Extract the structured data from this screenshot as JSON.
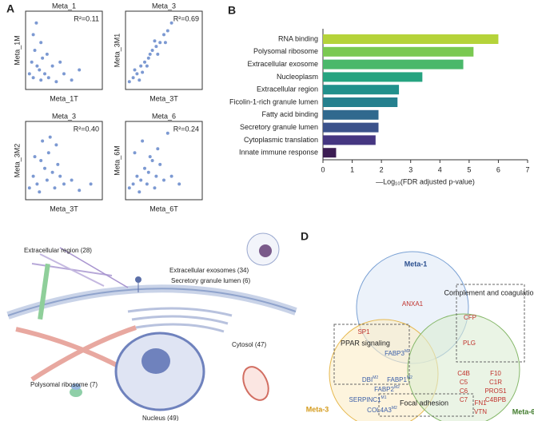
{
  "chart_data": [
    {
      "type": "scatter",
      "panel": "A",
      "title": "Meta_1",
      "x_label": "Meta_1T",
      "y_label": "Meta_1M",
      "annotation": "R²=0.11",
      "color": "#5b7fc7",
      "xlim": [
        0,
        1
      ],
      "ylim": [
        0,
        1
      ],
      "x": [
        0.05,
        0.08,
        0.1,
        0.12,
        0.15,
        0.18,
        0.2,
        0.22,
        0.25,
        0.3,
        0.35,
        0.4,
        0.5,
        0.6,
        0.1,
        0.14,
        0.2,
        0.28,
        0.45,
        0.7
      ],
      "y": [
        0.2,
        0.35,
        0.15,
        0.5,
        0.3,
        0.25,
        0.12,
        0.4,
        0.2,
        0.15,
        0.3,
        0.1,
        0.2,
        0.12,
        0.7,
        0.85,
        0.6,
        0.45,
        0.35,
        0.25
      ]
    },
    {
      "type": "scatter",
      "panel": "A",
      "title": "Meta_3",
      "x_label": "Meta_3T",
      "y_label": "Meta_3M1",
      "annotation": "R²=0.69",
      "color": "#5b7fc7",
      "xlim": [
        0,
        1
      ],
      "ylim": [
        0,
        1
      ],
      "x": [
        0.05,
        0.1,
        0.15,
        0.2,
        0.25,
        0.3,
        0.35,
        0.4,
        0.45,
        0.5,
        0.55,
        0.6,
        0.12,
        0.22,
        0.32,
        0.42,
        0.52,
        0.18,
        0.28,
        0.38
      ],
      "y": [
        0.1,
        0.15,
        0.2,
        0.3,
        0.35,
        0.4,
        0.5,
        0.55,
        0.6,
        0.7,
        0.75,
        0.85,
        0.25,
        0.22,
        0.45,
        0.45,
        0.6,
        0.12,
        0.3,
        0.62
      ]
    },
    {
      "type": "scatter",
      "panel": "A",
      "title": "Meta_3",
      "x_label": "Meta_3T",
      "y_label": "Meta_3M2",
      "annotation": "R²=0.40",
      "color": "#5b7fc7",
      "xlim": [
        0,
        1
      ],
      "ylim": [
        0,
        1
      ],
      "x": [
        0.05,
        0.1,
        0.15,
        0.2,
        0.25,
        0.3,
        0.35,
        0.4,
        0.45,
        0.5,
        0.12,
        0.22,
        0.32,
        0.42,
        0.28,
        0.18,
        0.38,
        0.6,
        0.7,
        0.85
      ],
      "y": [
        0.15,
        0.3,
        0.2,
        0.5,
        0.4,
        0.6,
        0.35,
        0.7,
        0.3,
        0.2,
        0.55,
        0.75,
        0.8,
        0.45,
        0.25,
        0.1,
        0.15,
        0.25,
        0.12,
        0.2
      ]
    },
    {
      "type": "scatter",
      "panel": "A",
      "title": "Meta_6",
      "x_label": "Meta_6T",
      "y_label": "Meta_6M",
      "annotation": "R²=0.24",
      "color": "#5b7fc7",
      "xlim": [
        0,
        1
      ],
      "ylim": [
        0,
        1
      ],
      "x": [
        0.05,
        0.1,
        0.15,
        0.2,
        0.25,
        0.3,
        0.35,
        0.4,
        0.45,
        0.5,
        0.12,
        0.22,
        0.32,
        0.42,
        0.28,
        0.18,
        0.38,
        0.6,
        0.7,
        0.55
      ],
      "y": [
        0.15,
        0.2,
        0.3,
        0.25,
        0.4,
        0.35,
        0.5,
        0.3,
        0.45,
        0.25,
        0.6,
        0.75,
        0.55,
        0.65,
        0.2,
        0.1,
        0.15,
        0.3,
        0.2,
        0.85
      ]
    },
    {
      "type": "bar",
      "panel": "B",
      "orientation": "horizontal",
      "x_label": "—Log₁₀(FDR adjusted p-value)",
      "categories": [
        "RNA binding",
        "Polysomal ribosome",
        "Extracellular exosome",
        "Nucleoplasm",
        "Extracellular region",
        "Ficolin-1-rich granule lumen",
        "Fatty acid binding",
        "Secretory granule lumen",
        "Cytoplasmic translation",
        "Innate immune response"
      ],
      "values": [
        6.0,
        5.15,
        4.8,
        3.4,
        2.6,
        2.55,
        1.9,
        1.9,
        1.8,
        0.45
      ],
      "colors": [
        "#b5d33a",
        "#7ac951",
        "#4ab86a",
        "#26a380",
        "#21908c",
        "#25808e",
        "#30698e",
        "#3b528b",
        "#453681",
        "#3c1d53"
      ],
      "xlim": [
        0,
        7
      ],
      "xticks": [
        0,
        1,
        2,
        3,
        4,
        5,
        6,
        7
      ]
    }
  ],
  "panel_labels": [
    "A",
    "B",
    "D"
  ],
  "illustration": {
    "labels": [
      "Extracellular region (28)",
      "Extracellular exosomes (34)",
      "Secretory granule lumen (6)",
      "Cytosol (47)",
      "Polysomal ribosome (7)",
      "Nucleus (49)"
    ]
  },
  "venn": {
    "sets": [
      "Meta-1",
      "Meta-3",
      "Meta-6"
    ],
    "boxes": [
      "Complement and coagulation",
      "PPAR signaling",
      "Focal adhesion"
    ],
    "genes": [
      {
        "name": "ANXA1"
      },
      {
        "name": "SP1"
      },
      {
        "name": "CFP"
      },
      {
        "name": "PLG"
      },
      {
        "name": "FABP3",
        "sup": "M2"
      },
      {
        "name": "DBI",
        "sup": "M2"
      },
      {
        "name": "FABP1",
        "sup": "M2"
      },
      {
        "name": "FABP2",
        "sup": "M2"
      },
      {
        "name": "SERPINC1",
        "sup": "M1"
      },
      {
        "name": "COL4A3",
        "sup": "M2"
      },
      {
        "name": "C4B"
      },
      {
        "name": "C5"
      },
      {
        "name": "C6"
      },
      {
        "name": "C7"
      },
      {
        "name": "F10"
      },
      {
        "name": "C1R"
      },
      {
        "name": "PROS1"
      },
      {
        "name": "C4BPB"
      },
      {
        "name": "FN1"
      },
      {
        "name": "VTN"
      }
    ]
  }
}
